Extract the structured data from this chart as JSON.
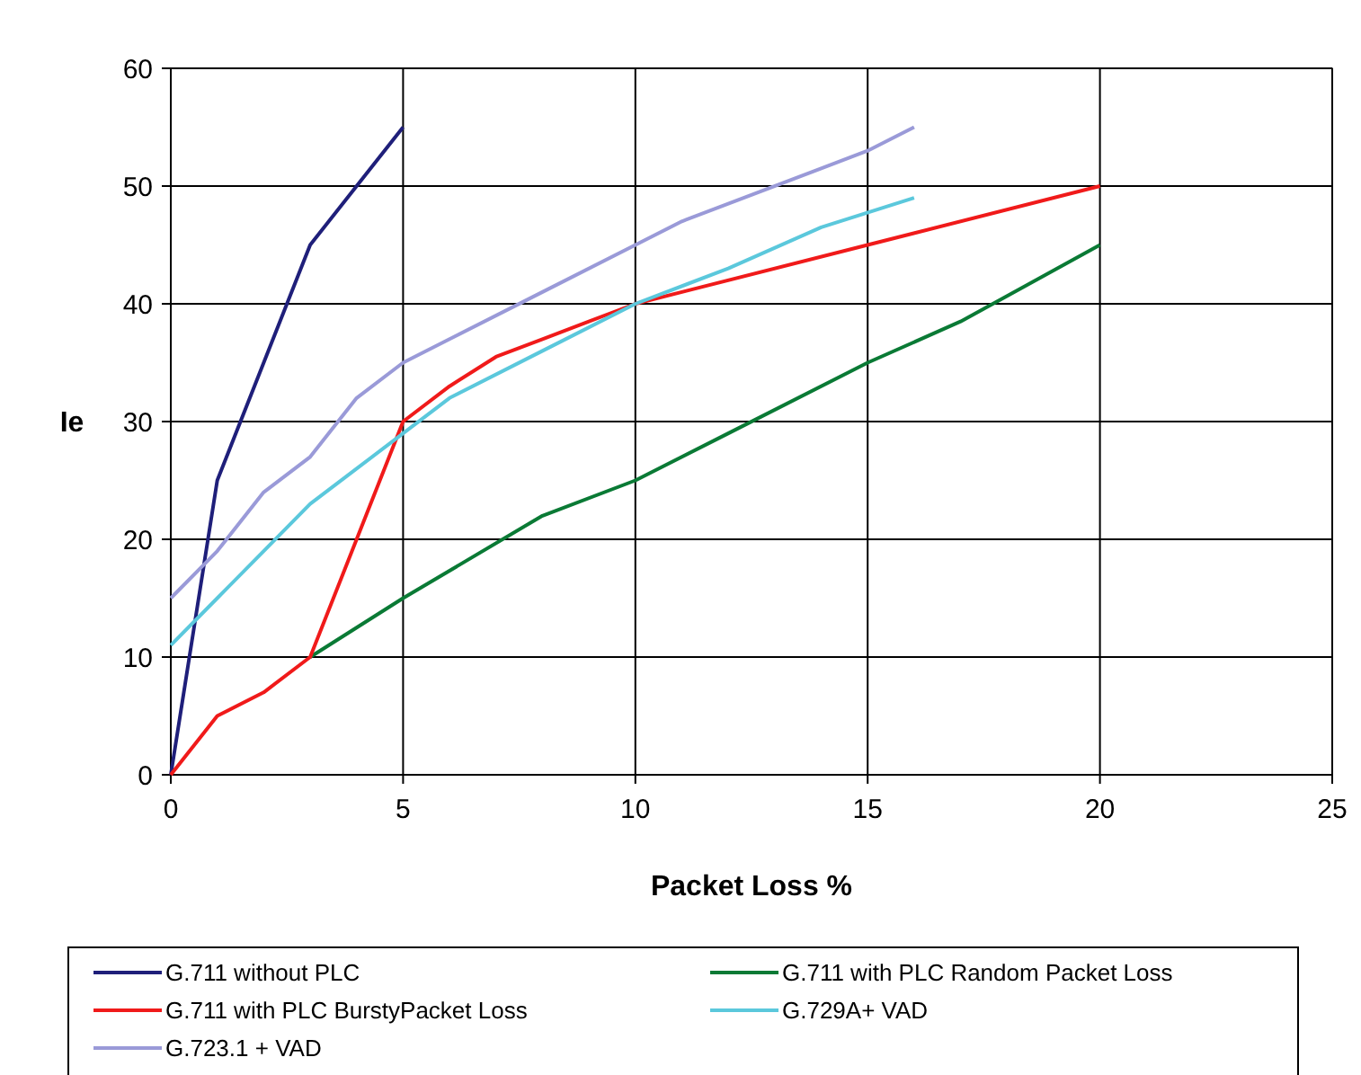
{
  "chart_data": {
    "type": "line",
    "xlabel": "Packet Loss %",
    "ylabel": "Ie",
    "xlim": [
      0,
      25
    ],
    "xticks": [
      0,
      5,
      10,
      15,
      20,
      25
    ],
    "ylim": [
      0,
      60
    ],
    "yticks": [
      0,
      10,
      20,
      30,
      40,
      50,
      60
    ],
    "grid": true,
    "legend": "bottom",
    "marker": "none",
    "line_style": "solid",
    "series": [
      {
        "name": "G.711 without PLC",
        "color": "#1f1f7a",
        "x": [
          0,
          1,
          2,
          3,
          4,
          5
        ],
        "values": [
          0,
          25,
          35,
          45,
          50,
          55
        ]
      },
      {
        "name": "G.711 with PLC Random Packet Loss",
        "color": "#0a7a35",
        "x": [
          3,
          5,
          8,
          10,
          12,
          15,
          17,
          20
        ],
        "values": [
          10,
          15,
          22,
          25,
          29,
          35,
          38.5,
          45
        ]
      },
      {
        "name": "G.711 with PLC BurstyPacket Loss",
        "color": "#f01a1a",
        "x": [
          0,
          1,
          2,
          3,
          4,
          5,
          6,
          7,
          8,
          9,
          10,
          15,
          20
        ],
        "values": [
          0,
          5,
          7,
          10,
          20,
          30,
          33,
          35.5,
          37,
          38.5,
          40,
          45,
          50
        ]
      },
      {
        "name": "G.729A+ VAD",
        "color": "#5bc8dc",
        "x": [
          0,
          1,
          2,
          3,
          4,
          5,
          6,
          8,
          10,
          12,
          14,
          16
        ],
        "values": [
          11,
          15,
          19,
          23,
          26,
          29,
          32,
          36,
          40,
          43,
          46.5,
          49
        ]
      },
      {
        "name": "G.723.1 + VAD",
        "color": "#9a9ad8",
        "x": [
          0,
          1,
          2,
          3,
          4,
          5,
          6,
          8,
          10,
          11,
          12,
          14,
          15,
          16
        ],
        "values": [
          15,
          19,
          24,
          27,
          32,
          35,
          37,
          41,
          45,
          47,
          48.5,
          51.5,
          53,
          55
        ]
      }
    ]
  }
}
